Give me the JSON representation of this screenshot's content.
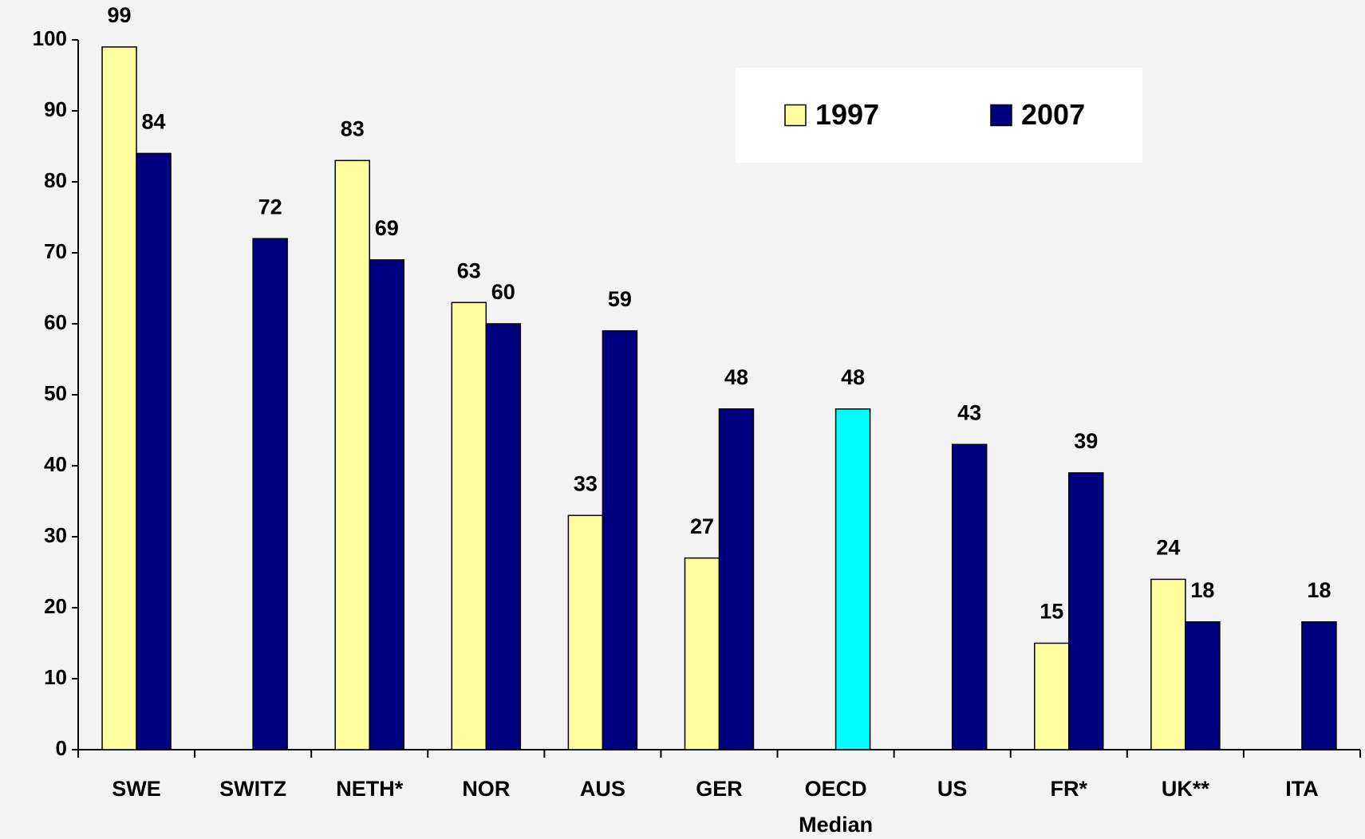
{
  "chart_data": {
    "type": "bar",
    "categories": [
      "SWE",
      "SWITZ",
      "NETH*",
      "NOR",
      "AUS",
      "GER",
      "OECD",
      "US",
      "FR*",
      "UK**",
      "ITA"
    ],
    "series": [
      {
        "name": "1997",
        "color": "#ffffa0",
        "values": [
          99,
          null,
          83,
          63,
          33,
          27,
          null,
          null,
          15,
          24,
          null
        ]
      },
      {
        "name": "2007",
        "color": "#000080",
        "colors": [
          "#000080",
          "#000080",
          "#000080",
          "#000080",
          "#000080",
          "#000080",
          "#00ffff",
          "#000080",
          "#000080",
          "#000080",
          "#000080"
        ],
        "values": [
          84,
          72,
          69,
          60,
          59,
          48,
          48,
          43,
          39,
          18,
          18
        ]
      }
    ],
    "annotations": [
      {
        "text": "Median",
        "category": "OECD"
      }
    ],
    "ylim": [
      0,
      100
    ],
    "yticks": [
      0,
      10,
      20,
      30,
      40,
      50,
      60,
      70,
      80,
      90,
      100
    ],
    "grid": false,
    "legend": "top-right"
  }
}
